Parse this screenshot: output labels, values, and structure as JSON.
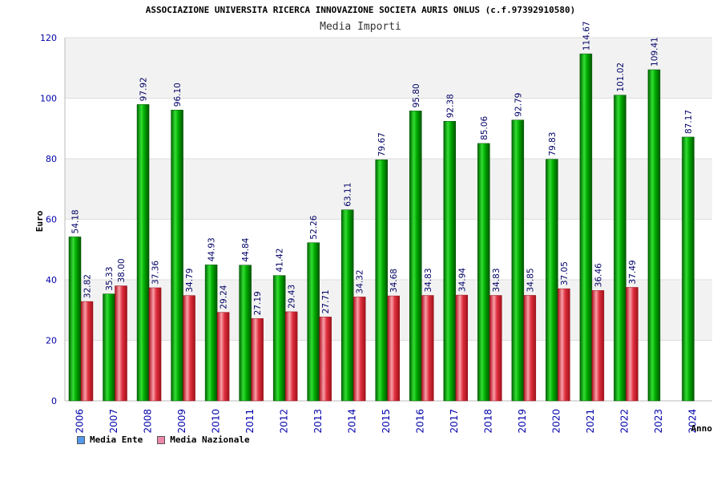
{
  "chart_data": {
    "type": "bar",
    "title": "ASSOCIAZIONE UNIVERSITA RICERCA INNOVAZIONE SOCIETA AURIS ONLUS (c.f.97392910580)",
    "subtitle": "Media Importi",
    "xlabel": "Anno",
    "ylabel": "Euro",
    "ylim": [
      0,
      120
    ],
    "yticks": [
      0,
      20,
      40,
      60,
      80,
      100,
      120
    ],
    "grid": true,
    "legend_position": "bottom-left",
    "categories": [
      "2006",
      "2007",
      "2008",
      "2009",
      "2010",
      "2011",
      "2012",
      "2013",
      "2014",
      "2015",
      "2016",
      "2017",
      "2018",
      "2019",
      "2020",
      "2021",
      "2022",
      "2023",
      "2024"
    ],
    "series": [
      {
        "name": "Media Ente",
        "color": "#00a000",
        "values": [
          54.18,
          35.33,
          97.92,
          96.1,
          44.93,
          44.84,
          41.42,
          52.26,
          63.11,
          79.67,
          95.8,
          92.38,
          85.06,
          92.79,
          79.83,
          114.67,
          101.02,
          109.41,
          87.17
        ],
        "labels": [
          "54.18",
          "35.33",
          "97.92",
          "96.10",
          "44.93",
          "44.84",
          "41.42",
          "52.26",
          "63.11",
          "79.67",
          "95.80",
          "92.38",
          "85.06",
          "92.79",
          "79.83",
          "114.67",
          "101.02",
          "109.41",
          "87.17"
        ]
      },
      {
        "name": "Media Nazionale",
        "color": "#e0303c",
        "values": [
          32.82,
          38.0,
          37.36,
          34.79,
          29.24,
          27.19,
          29.43,
          27.71,
          34.32,
          34.68,
          34.83,
          34.94,
          34.83,
          34.85,
          37.05,
          36.46,
          37.49,
          null,
          null
        ],
        "labels": [
          "32.82",
          "38.00",
          "37.36",
          "34.79",
          "29.24",
          "27.19",
          "29.43",
          "27.71",
          "34.32",
          "34.68",
          "34.83",
          "34.94",
          "34.83",
          "34.85",
          "37.05",
          "36.46",
          "37.49",
          null,
          null
        ]
      }
    ]
  },
  "legend": {
    "items": [
      {
        "label": "Media Ente",
        "color": "#5599ee"
      },
      {
        "label": "Media Nazionale",
        "color": "#ee88aa"
      }
    ]
  }
}
